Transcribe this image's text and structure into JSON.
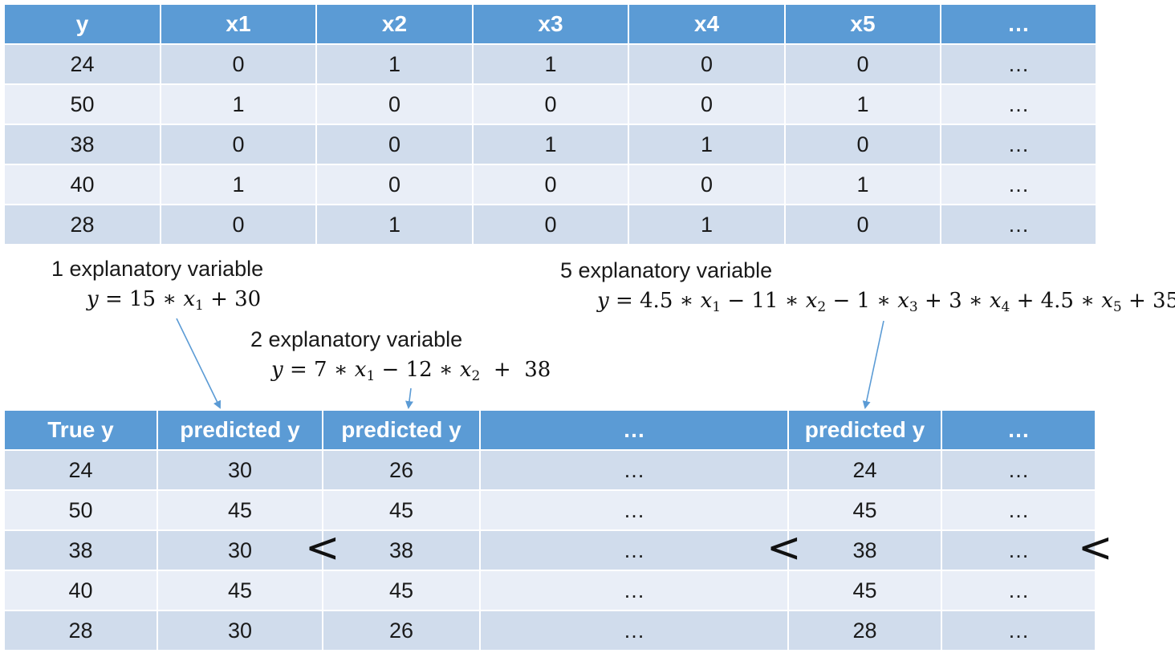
{
  "top_table": {
    "headers": [
      "y",
      "x1",
      "x2",
      "x3",
      "x4",
      "x5",
      "…"
    ],
    "rows": [
      [
        "24",
        "0",
        "1",
        "1",
        "0",
        "0",
        "…"
      ],
      [
        "50",
        "1",
        "0",
        "0",
        "0",
        "1",
        "…"
      ],
      [
        "38",
        "0",
        "0",
        "1",
        "1",
        "0",
        "…"
      ],
      [
        "40",
        "1",
        "0",
        "0",
        "0",
        "1",
        "…"
      ],
      [
        "28",
        "0",
        "1",
        "0",
        "1",
        "0",
        "…"
      ]
    ]
  },
  "models": {
    "m1": {
      "label": "1 explanatory variable"
    },
    "m2": {
      "label": "2 explanatory variable"
    },
    "m5": {
      "label": "5 explanatory variable"
    }
  },
  "bottom_table": {
    "headers": [
      "True y",
      "predicted y",
      "predicted y",
      "…",
      "predicted y",
      "…"
    ],
    "rows": [
      [
        "24",
        "30",
        "26",
        "…",
        "24",
        "…"
      ],
      [
        "50",
        "45",
        "45",
        "…",
        "45",
        "…"
      ],
      [
        "38",
        "30",
        "38",
        "…",
        "38",
        "…"
      ],
      [
        "40",
        "45",
        "45",
        "…",
        "45",
        "…"
      ],
      [
        "28",
        "30",
        "26",
        "…",
        "28",
        "…"
      ]
    ]
  },
  "comparison": {
    "symbol": "<"
  },
  "colors": {
    "header": "#5b9bd5",
    "band_dark": "#d0dcec",
    "band_light": "#e9eef7",
    "arrow": "#5b9bd5"
  }
}
